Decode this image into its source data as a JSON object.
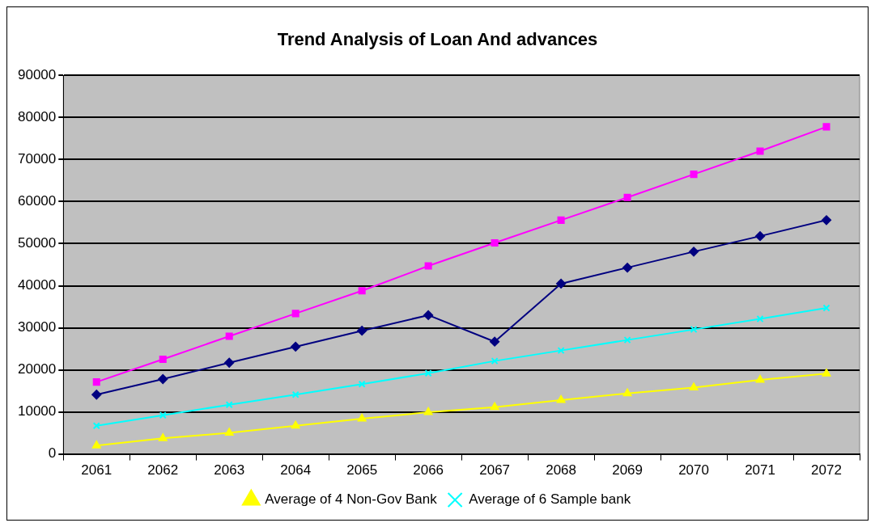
{
  "chart_data": {
    "type": "line",
    "title": "Trend Analysis of Loan And advances",
    "categories": [
      "2061",
      "2062",
      "2063",
      "2064",
      "2065",
      "2066",
      "2067",
      "2068",
      "2069",
      "2070",
      "2071",
      "2072"
    ],
    "series": [
      {
        "color": "#000080",
        "marker": "diamond",
        "values": [
          14100,
          17800,
          21700,
          25500,
          29300,
          33000,
          26700,
          40500,
          44300,
          48100,
          51800,
          55600
        ]
      },
      {
        "color": "#ff00ff",
        "marker": "square",
        "values": [
          17100,
          22500,
          28000,
          33400,
          38800,
          44700,
          50200,
          55600,
          61000,
          66500,
          72000,
          77800
        ]
      },
      {
        "name": "Average of 4 Non-Gov Bank",
        "color": "#ffff00",
        "marker": "triangle",
        "values": [
          2000,
          3700,
          5000,
          6700,
          8400,
          9900,
          11100,
          12800,
          14400,
          15800,
          17600,
          19100
        ]
      },
      {
        "name": "Average of 6 Sample bank",
        "color": "#00ffff",
        "marker": "cross",
        "values": [
          6700,
          9200,
          11700,
          14100,
          16600,
          19200,
          22100,
          24600,
          27100,
          29600,
          32100,
          34700
        ]
      }
    ],
    "ylim": [
      0,
      90000
    ],
    "yticks": [
      0,
      10000,
      20000,
      30000,
      40000,
      50000,
      60000,
      70000,
      80000,
      90000
    ],
    "grid": "y",
    "legend": "bottom",
    "line_style": "solid"
  }
}
